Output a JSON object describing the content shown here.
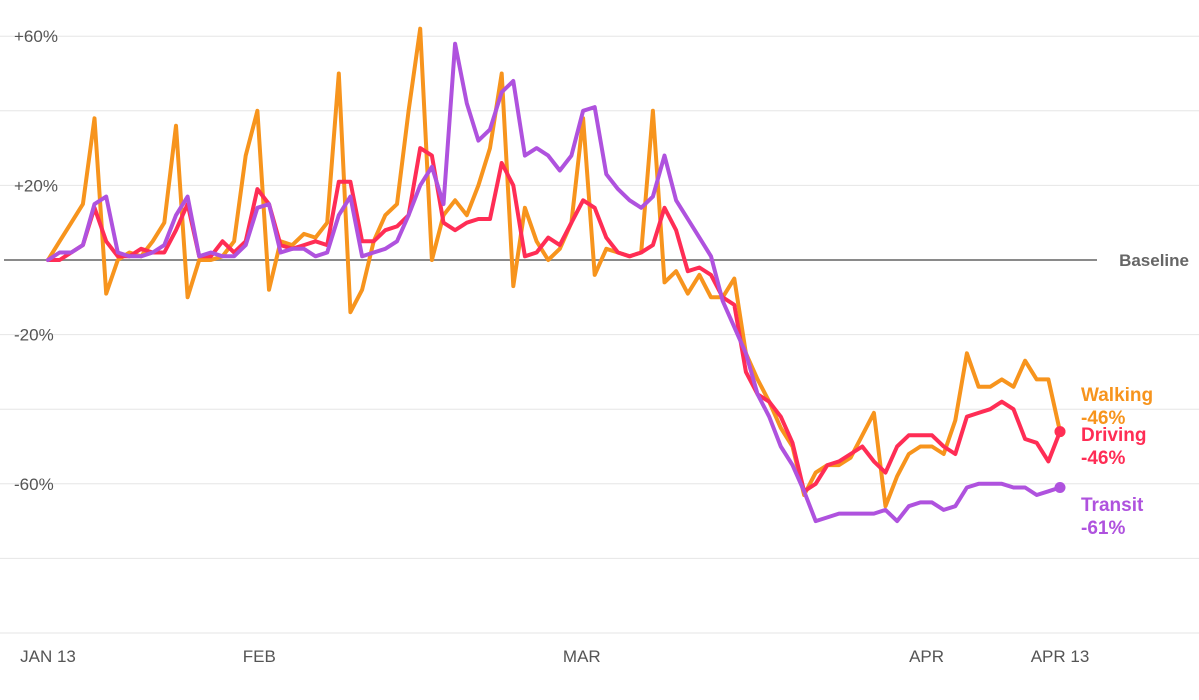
{
  "chart_data": {
    "type": "line",
    "title": "",
    "xlabel": "",
    "ylabel": "",
    "ylim": [
      -100,
      60
    ],
    "y_ticks": [
      {
        "value": 60,
        "label": "+60%"
      },
      {
        "value": 20,
        "label": "+20%"
      },
      {
        "value": -20,
        "label": "-20%"
      },
      {
        "value": -60,
        "label": "-60%"
      }
    ],
    "grid_values": [
      60,
      40,
      20,
      -20,
      -40,
      -60,
      -80,
      -100
    ],
    "x_ticks": [
      {
        "date": "2020-01-13",
        "label": "JAN 13"
      },
      {
        "date": "2020-02-01",
        "label": "FEB"
      },
      {
        "date": "2020-03-01",
        "label": "MAR"
      },
      {
        "date": "2020-04-01",
        "label": "APR"
      },
      {
        "date": "2020-04-13",
        "label": "APR 13"
      }
    ],
    "baseline_label": "Baseline",
    "x_start": "2020-01-13",
    "x_end": "2020-04-13",
    "series": [
      {
        "name": "Walking",
        "end_value_label": "-46%",
        "color": "#f7941d",
        "values": [
          0,
          5,
          10,
          15,
          38,
          -9,
          0,
          2,
          1,
          5,
          10,
          36,
          -10,
          0,
          0,
          1,
          5,
          28,
          40,
          -8,
          5,
          4,
          7,
          6,
          10,
          50,
          -14,
          -8,
          5,
          12,
          15,
          40,
          62,
          0,
          12,
          16,
          12,
          20,
          30,
          50,
          -7,
          14,
          5,
          0,
          3,
          10,
          38,
          -4,
          3,
          2,
          1,
          2,
          40,
          -6,
          -3,
          -9,
          -4,
          -10,
          -10,
          -5,
          -25,
          -32,
          -38,
          -45,
          -50,
          -63,
          -57,
          -55,
          -55,
          -53,
          -47,
          -41,
          -66,
          -58,
          -52,
          -50,
          -50,
          -52,
          -43,
          -25,
          -34,
          -34,
          -32,
          -34,
          -27,
          -32,
          -32,
          -46
        ]
      },
      {
        "name": "Driving",
        "end_value_label": "-46%",
        "color": "#ff2d55",
        "values": [
          0,
          0,
          2,
          4,
          14,
          5,
          1,
          1,
          3,
          2,
          2,
          8,
          15,
          1,
          1,
          5,
          2,
          5,
          19,
          15,
          4,
          3,
          4,
          5,
          4,
          21,
          21,
          5,
          5,
          8,
          9,
          12,
          30,
          28,
          10,
          8,
          10,
          11,
          11,
          26,
          20,
          1,
          2,
          6,
          4,
          10,
          16,
          14,
          6,
          2,
          1,
          2,
          4,
          14,
          8,
          -3,
          -2,
          -4,
          -10,
          -12,
          -30,
          -36,
          -38,
          -42,
          -49,
          -62,
          -60,
          -55,
          -54,
          -52,
          -50,
          -54,
          -57,
          -50,
          -47,
          -47,
          -47,
          -50,
          -52,
          -42,
          -41,
          -40,
          -38,
          -40,
          -48,
          -49,
          -54,
          -46
        ]
      },
      {
        "name": "Transit",
        "end_value_label": "-61%",
        "color": "#af52de",
        "values": [
          0,
          2,
          2,
          4,
          15,
          17,
          2,
          1,
          1,
          2,
          4,
          12,
          17,
          1,
          2,
          1,
          1,
          4,
          14,
          15,
          2,
          3,
          3,
          1,
          2,
          12,
          17,
          1,
          2,
          3,
          5,
          12,
          20,
          25,
          15,
          58,
          42,
          32,
          35,
          45,
          48,
          28,
          30,
          28,
          24,
          28,
          40,
          41,
          23,
          19,
          16,
          14,
          17,
          28,
          16,
          11,
          6,
          1,
          -11,
          -18,
          -25,
          -36,
          -42,
          -50,
          -55,
          -62,
          -70,
          -69,
          -68,
          -68,
          -68,
          -68,
          -67,
          -70,
          -66,
          -65,
          -65,
          -67,
          -66,
          -61,
          -60,
          -60,
          -60,
          -61,
          -61,
          -63,
          -62,
          -61
        ]
      }
    ]
  }
}
